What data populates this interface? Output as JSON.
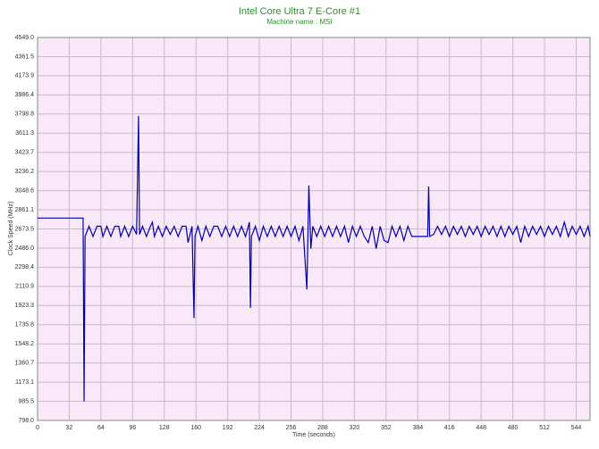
{
  "chart_data": {
    "type": "line",
    "title": "Intel Core Ultra 7 E-Core #1",
    "subtitle": "Machine name : MSI",
    "x_label": "Time (seconds)",
    "y_label": "Clock Speed (MHz)",
    "xlim": [
      0,
      558
    ],
    "ylim": [
      798.0,
      4549.0
    ],
    "xticks": [
      0,
      32,
      64,
      96,
      128,
      160,
      192,
      224,
      256,
      288,
      320,
      352,
      384,
      416,
      448,
      480,
      512,
      544
    ],
    "yticks": [
      {
        "value": 798.0,
        "label": "798.0"
      },
      {
        "value": 985.5,
        "label": "985.5"
      },
      {
        "value": 1173.1,
        "label": "1173.1"
      },
      {
        "value": 1360.7,
        "label": "1360.7"
      },
      {
        "value": 1548.2,
        "label": "1548.2"
      },
      {
        "value": 1735.8,
        "label": "1735.8"
      },
      {
        "value": 1923.3,
        "label": "1923.3"
      },
      {
        "value": 2110.9,
        "label": "2110.9"
      },
      {
        "value": 2298.4,
        "label": "2298.4"
      },
      {
        "value": 2486.0,
        "label": "2486.0"
      },
      {
        "value": 2673.5,
        "label": "2673.5"
      },
      {
        "value": 2861.1,
        "label": "2861.1"
      },
      {
        "value": 3048.6,
        "label": "3048.6"
      },
      {
        "value": 3236.2,
        "label": "3236.2"
      },
      {
        "value": 3423.7,
        "label": "3423.7"
      },
      {
        "value": 3611.3,
        "label": "3611.3"
      },
      {
        "value": 3798.8,
        "label": "3798.8"
      },
      {
        "value": 3986.4,
        "label": "3986.4"
      },
      {
        "value": 4173.9,
        "label": "4173.9"
      },
      {
        "value": 4361.5,
        "label": "4361.5"
      },
      {
        "value": 4549.0,
        "label": "4549.0"
      }
    ],
    "grid": true,
    "background": "#f8e8f8",
    "x": [
      0,
      46,
      47,
      48,
      52,
      56,
      60,
      64,
      66,
      70,
      74,
      78,
      82,
      84,
      88,
      92,
      96,
      100,
      102,
      103,
      106,
      110,
      114,
      116,
      118,
      122,
      126,
      130,
      134,
      138,
      142,
      146,
      150,
      152,
      156,
      158,
      159,
      162,
      166,
      170,
      174,
      178,
      182,
      186,
      190,
      194,
      198,
      202,
      206,
      210,
      214,
      215,
      216,
      220,
      224,
      228,
      232,
      236,
      240,
      244,
      248,
      252,
      256,
      260,
      264,
      268,
      272,
      274,
      276,
      278,
      282,
      286,
      290,
      294,
      298,
      302,
      306,
      310,
      314,
      318,
      322,
      326,
      330,
      334,
      338,
      342,
      346,
      350,
      354,
      358,
      362,
      366,
      370,
      374,
      378,
      382,
      386,
      390,
      394,
      395,
      396,
      400,
      404,
      408,
      412,
      416,
      420,
      424,
      428,
      432,
      436,
      440,
      444,
      448,
      452,
      456,
      460,
      464,
      468,
      472,
      476,
      480,
      484,
      488,
      492,
      496,
      500,
      504,
      508,
      512,
      516,
      520,
      524,
      528,
      532,
      536,
      540,
      544,
      548,
      552,
      556,
      558
    ],
    "series": [
      {
        "name": "Clock Speed",
        "color": "#0000a8",
        "values": [
          2780,
          2780,
          985,
          2600,
          2700,
          2600,
          2700,
          2700,
          2600,
          2700,
          2600,
          2700,
          2700,
          2600,
          2700,
          2600,
          2700,
          2620,
          3780,
          2620,
          2700,
          2600,
          2700,
          2740,
          2600,
          2700,
          2600,
          2700,
          2620,
          2700,
          2600,
          2700,
          2700,
          2540,
          2700,
          1800,
          2600,
          2700,
          2560,
          2700,
          2600,
          2700,
          2700,
          2600,
          2700,
          2600,
          2700,
          2600,
          2700,
          2600,
          2740,
          1900,
          2600,
          2700,
          2560,
          2700,
          2600,
          2700,
          2600,
          2700,
          2600,
          2700,
          2600,
          2700,
          2560,
          2700,
          2080,
          3100,
          2480,
          2700,
          2600,
          2700,
          2600,
          2700,
          2600,
          2700,
          2600,
          2700,
          2540,
          2700,
          2600,
          2700,
          2600,
          2540,
          2700,
          2480,
          2700,
          2560,
          2540,
          2700,
          2600,
          2700,
          2560,
          2700,
          2600,
          2600,
          2600,
          2600,
          2600,
          3090,
          2600,
          2620,
          2700,
          2620,
          2700,
          2600,
          2700,
          2620,
          2700,
          2600,
          2700,
          2620,
          2700,
          2600,
          2700,
          2620,
          2700,
          2600,
          2700,
          2600,
          2700,
          2620,
          2700,
          2540,
          2700,
          2600,
          2700,
          2620,
          2700,
          2600,
          2700,
          2620,
          2700,
          2600,
          2740,
          2600,
          2700,
          2620,
          2700,
          2600,
          2700,
          2600
        ]
      }
    ]
  }
}
